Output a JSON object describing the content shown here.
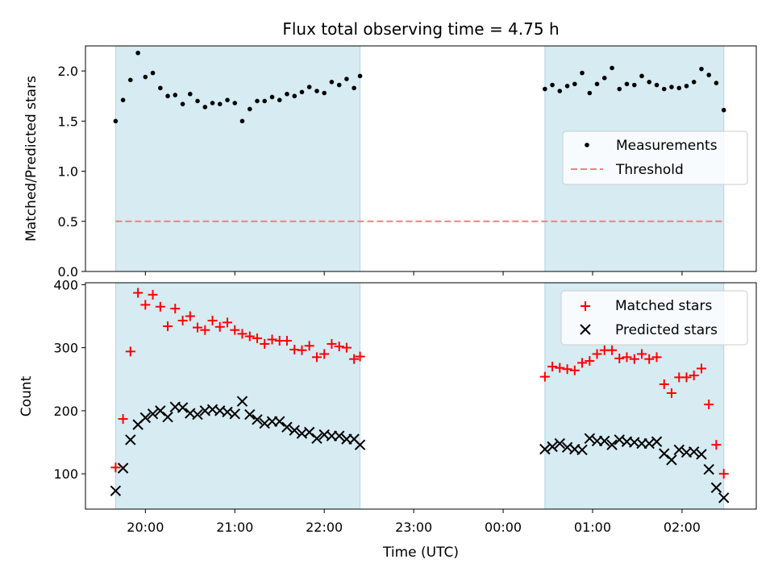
{
  "chart_data": [
    {
      "type": "scatter",
      "title": "Flux total observing time = 4.75 h",
      "xlabel": "",
      "ylabel": "Matched/Predicted stars",
      "ylim": [
        0,
        2.25
      ],
      "yticks": [
        0.0,
        0.5,
        1.0,
        1.5,
        2.0
      ],
      "ytick_labels": [
        "0.0",
        "0.5",
        "1.0",
        "1.5",
        "2.0"
      ],
      "xticks_hours": [
        20,
        21,
        22,
        23,
        24,
        25,
        26
      ],
      "xlim_hours": [
        19.33,
        26.83
      ],
      "shaded_intervals_hours": [
        [
          19.667,
          22.4
        ],
        [
          24.467,
          26.467
        ]
      ],
      "legend_position": "center-right",
      "colors": {
        "measurements": "#000000",
        "threshold": "#f08080",
        "shade": "#add8e6"
      },
      "series": [
        {
          "name": "Measurements",
          "x_hours": [
            19.667,
            19.75,
            19.833,
            19.917,
            20.0,
            20.083,
            20.167,
            20.25,
            20.333,
            20.417,
            20.5,
            20.583,
            20.667,
            20.75,
            20.833,
            20.917,
            21.0,
            21.083,
            21.167,
            21.25,
            21.333,
            21.417,
            21.5,
            21.583,
            21.667,
            21.75,
            21.833,
            21.917,
            22.0,
            22.083,
            22.167,
            22.25,
            22.333,
            22.4,
            24.467,
            24.55,
            24.633,
            24.717,
            24.8,
            24.883,
            24.967,
            25.05,
            25.133,
            25.217,
            25.3,
            25.383,
            25.467,
            25.55,
            25.633,
            25.717,
            25.8,
            25.883,
            25.967,
            26.05,
            26.133,
            26.217,
            26.3,
            26.383,
            26.467
          ],
          "y": [
            1.5,
            1.71,
            1.91,
            2.18,
            1.94,
            1.98,
            1.83,
            1.75,
            1.76,
            1.67,
            1.77,
            1.7,
            1.64,
            1.68,
            1.67,
            1.71,
            1.68,
            1.5,
            1.62,
            1.7,
            1.7,
            1.74,
            1.71,
            1.77,
            1.75,
            1.79,
            1.84,
            1.8,
            1.78,
            1.89,
            1.86,
            1.92,
            1.83,
            1.95,
            1.82,
            1.86,
            1.8,
            1.85,
            1.87,
            1.98,
            1.78,
            1.87,
            1.93,
            2.03,
            1.82,
            1.87,
            1.86,
            1.95,
            1.89,
            1.86,
            1.82,
            1.84,
            1.83,
            1.85,
            1.89,
            2.02,
            1.96,
            1.88,
            1.61
          ]
        },
        {
          "name": "Threshold",
          "x_hours": [
            19.667,
            26.467
          ],
          "y": [
            0.5,
            0.5
          ]
        }
      ]
    },
    {
      "type": "scatter",
      "title": "",
      "xlabel": "Time (UTC)",
      "ylabel": "Count",
      "ylim": [
        44,
        403
      ],
      "yticks": [
        100,
        200,
        300,
        400
      ],
      "ytick_labels": [
        "100",
        "200",
        "300",
        "400"
      ],
      "xticks_hours": [
        20,
        21,
        22,
        23,
        24,
        25,
        26
      ],
      "xtick_labels": [
        "20:00",
        "21:00",
        "22:00",
        "23:00",
        "00:00",
        "01:00",
        "02:00"
      ],
      "xlim_hours": [
        19.33,
        26.83
      ],
      "shaded_intervals_hours": [
        [
          19.667,
          22.4
        ],
        [
          24.467,
          26.467
        ]
      ],
      "legend_position": "top-right",
      "colors": {
        "matched": "#ff0000",
        "predicted": "#000000",
        "shade": "#add8e6"
      },
      "series": [
        {
          "name": "Matched stars",
          "x_hours": [
            19.667,
            19.75,
            19.833,
            19.917,
            20.0,
            20.083,
            20.167,
            20.25,
            20.333,
            20.417,
            20.5,
            20.583,
            20.667,
            20.75,
            20.833,
            20.917,
            21.0,
            21.083,
            21.167,
            21.25,
            21.333,
            21.417,
            21.5,
            21.583,
            21.667,
            21.75,
            21.833,
            21.917,
            22.0,
            22.083,
            22.167,
            22.25,
            22.333,
            22.4,
            24.467,
            24.55,
            24.633,
            24.717,
            24.8,
            24.883,
            24.967,
            25.05,
            25.133,
            25.217,
            25.3,
            25.383,
            25.467,
            25.55,
            25.633,
            25.717,
            25.8,
            25.883,
            25.967,
            26.05,
            26.133,
            26.217,
            26.3,
            26.383,
            26.467
          ],
          "y": [
            110,
            187,
            294,
            387,
            368,
            384,
            365,
            334,
            362,
            343,
            350,
            332,
            328,
            343,
            333,
            340,
            328,
            322,
            318,
            315,
            306,
            313,
            311,
            311,
            297,
            296,
            303,
            285,
            290,
            306,
            302,
            300,
            282,
            286,
            254,
            270,
            268,
            266,
            264,
            276,
            279,
            290,
            296,
            296,
            283,
            285,
            282,
            290,
            282,
            285,
            242,
            228,
            253,
            253,
            256,
            267,
            210,
            146,
            100
          ]
        },
        {
          "name": "Predicted stars",
          "x_hours": [
            19.667,
            19.75,
            19.833,
            19.917,
            20.0,
            20.083,
            20.167,
            20.25,
            20.333,
            20.417,
            20.5,
            20.583,
            20.667,
            20.75,
            20.833,
            20.917,
            21.0,
            21.083,
            21.167,
            21.25,
            21.333,
            21.417,
            21.5,
            21.583,
            21.667,
            21.75,
            21.833,
            21.917,
            22.0,
            22.083,
            22.167,
            22.25,
            22.333,
            22.4,
            24.467,
            24.55,
            24.633,
            24.717,
            24.8,
            24.883,
            24.967,
            25.05,
            25.133,
            25.217,
            25.3,
            25.383,
            25.467,
            25.55,
            25.633,
            25.717,
            25.8,
            25.883,
            25.967,
            26.05,
            26.133,
            26.217,
            26.3,
            26.383,
            26.467
          ],
          "y": [
            73,
            109,
            154,
            178,
            189,
            195,
            200,
            190,
            206,
            205,
            196,
            194,
            200,
            202,
            200,
            198,
            195,
            215,
            194,
            186,
            180,
            183,
            183,
            174,
            169,
            164,
            166,
            156,
            162,
            160,
            160,
            155,
            155,
            146,
            139,
            143,
            148,
            142,
            139,
            138,
            156,
            152,
            152,
            146,
            154,
            151,
            150,
            148,
            148,
            151,
            132,
            122,
            138,
            134,
            135,
            131,
            107,
            78,
            62
          ]
        }
      ]
    }
  ]
}
